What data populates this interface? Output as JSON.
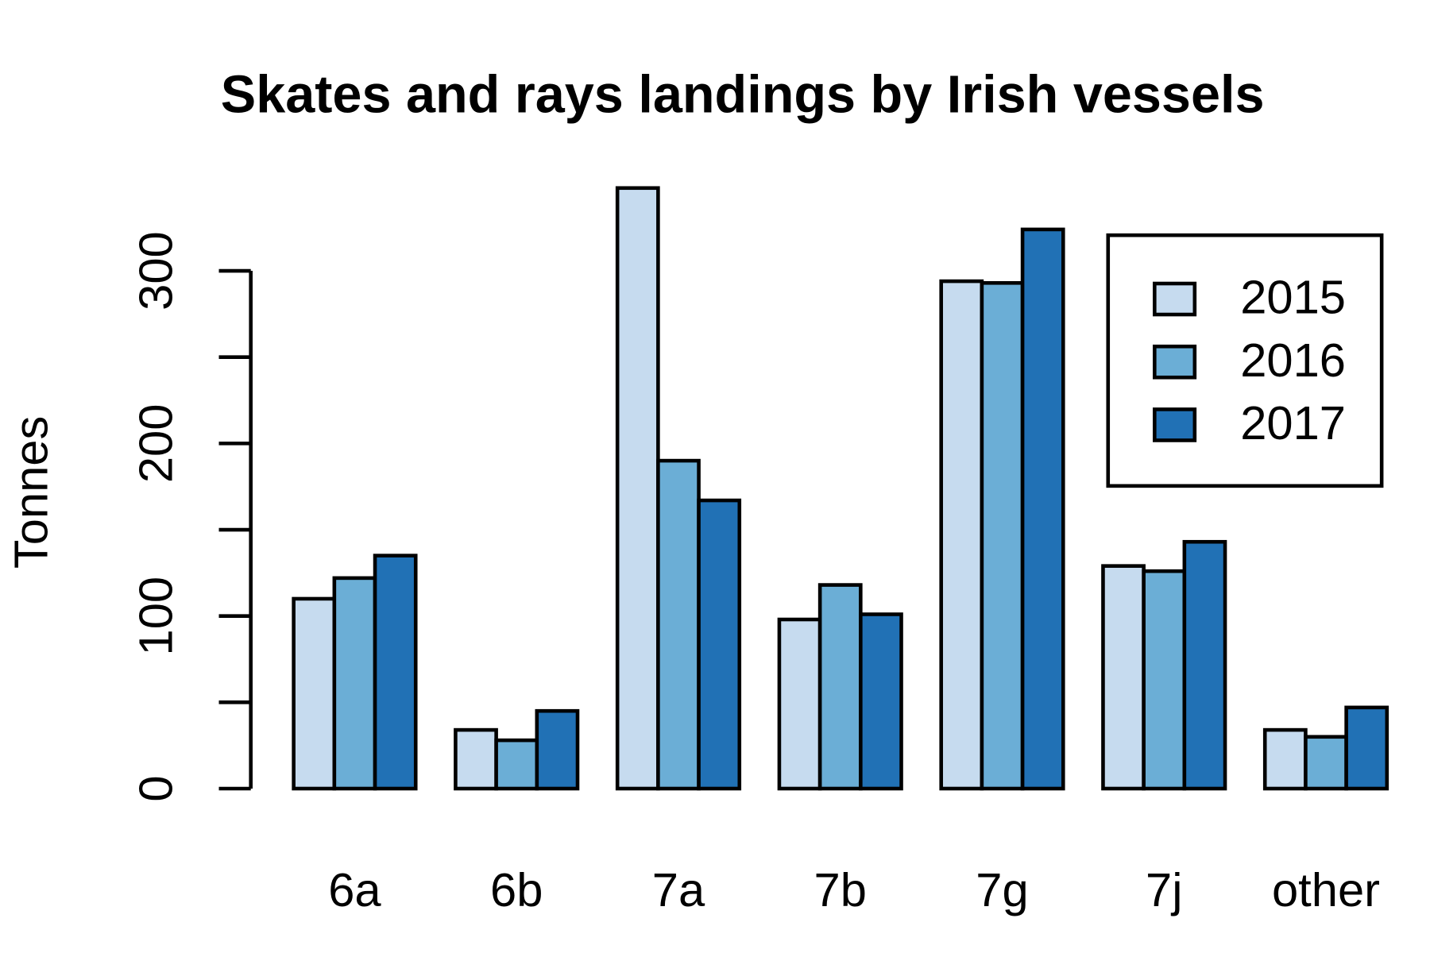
{
  "chart_data": {
    "type": "bar",
    "title": "Skates and rays landings by Irish vessels",
    "y_label": "Tonnes",
    "categories": [
      "6a",
      "6b",
      "7a",
      "7b",
      "7g",
      "7j",
      "other"
    ],
    "series": [
      {
        "name": "2015",
        "color": "#c6dbef",
        "values": [
          110,
          34,
          348,
          98,
          294,
          129,
          34
        ]
      },
      {
        "name": "2016",
        "color": "#6baed6",
        "values": [
          122,
          28,
          190,
          118,
          293,
          126,
          30
        ]
      },
      {
        "name": "2017",
        "color": "#2171b5",
        "values": [
          135,
          45,
          167,
          101,
          324,
          143,
          47
        ]
      }
    ],
    "ylim": [
      0,
      360
    ],
    "yticks": [
      0,
      100,
      200,
      300
    ],
    "minor_yticks": [
      50,
      150,
      250
    ],
    "legend": "top-right"
  }
}
